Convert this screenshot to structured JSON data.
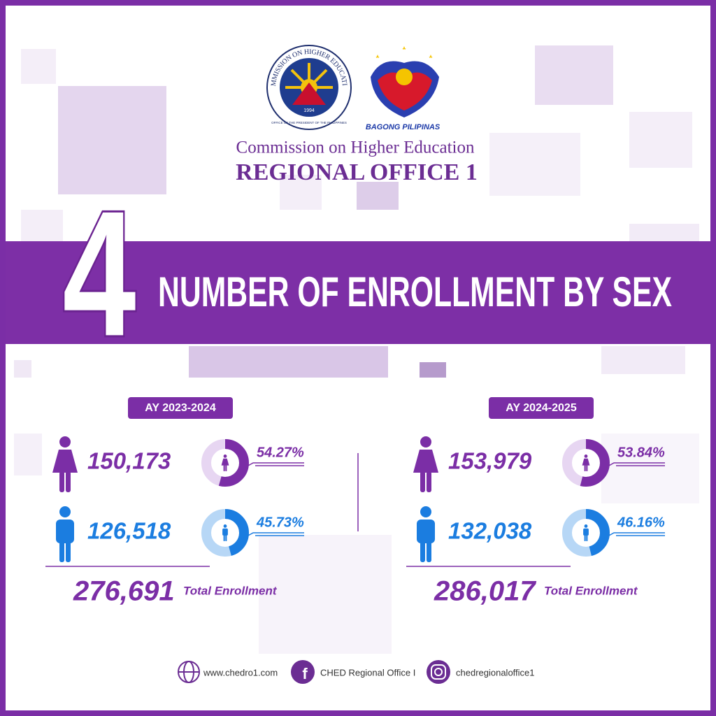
{
  "header": {
    "seal_ring": "COMMISSION ON HIGHER EDUCATION",
    "seal_year": "1994",
    "seal_footer": "OFFICE OF THE PRESIDENT OF THE PHILIPPINES",
    "partner_logo": "BAGONG PILIPINAS",
    "organization": "Commission on Higher Education",
    "office": "REGIONAL OFFICE 1"
  },
  "section": {
    "number": "4",
    "title": "NUMBER OF ENROLLMENT BY SEX"
  },
  "panels": [
    {
      "year": "AY 2023-2024",
      "female": {
        "count": "150,173",
        "percent": {
          "value": 54.27,
          "label": "54.27%"
        }
      },
      "male": {
        "count": "126,518",
        "percent": {
          "value": 45.73,
          "label": "45.73%"
        }
      },
      "total": "276,691",
      "total_label": "Total Enrollment"
    },
    {
      "year": "AY 2024-2025",
      "female": {
        "count": "153,979",
        "percent": {
          "value": 53.84,
          "label": "53.84%"
        }
      },
      "male": {
        "count": "132,038",
        "percent": {
          "value": 46.16,
          "label": "46.16%"
        }
      },
      "total": "286,017",
      "total_label": "Total Enrollment"
    }
  ],
  "footer": {
    "website": "www.chedro1.com",
    "facebook": "CHED Regional Office I",
    "instagram": "chedregionaloffice1"
  }
}
